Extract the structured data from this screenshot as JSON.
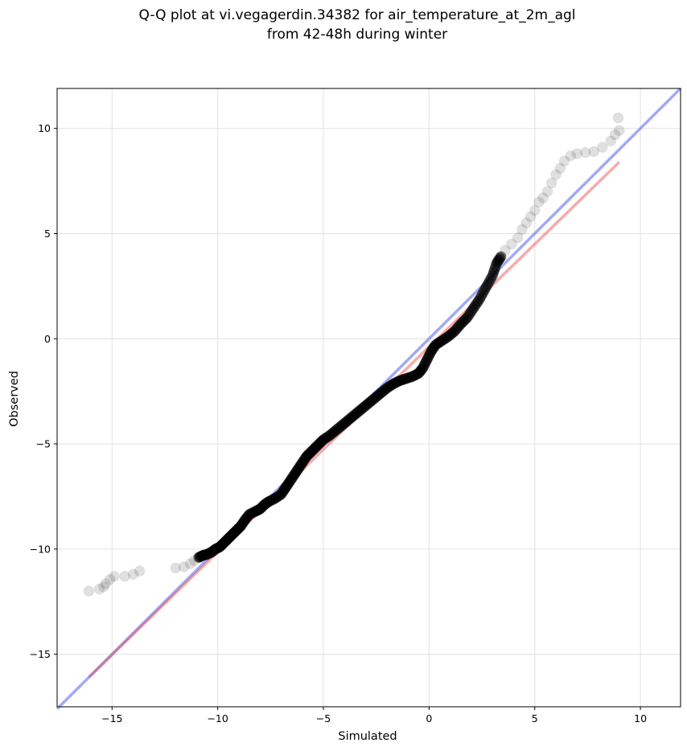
{
  "chart_data": {
    "type": "scatter",
    "title": [
      "Q-Q plot at vi.vegagerdin.34382 for air_temperature_at_2m_agl",
      "from 42-48h during winter"
    ],
    "xlabel": "Simulated",
    "ylabel": "Observed",
    "xlim": [
      -17.6,
      11.9
    ],
    "ylim": [
      -17.5,
      11.9
    ],
    "xticks": [
      -15,
      -10,
      -5,
      0,
      5,
      10
    ],
    "yticks": [
      -15,
      -10,
      -5,
      0,
      5,
      10
    ],
    "grid": true,
    "colors": {
      "points": "#000000",
      "identity_line": "#4455ee",
      "fit_line": "#ee4444"
    },
    "series": [
      {
        "type": "line",
        "points": [
          [
            -17.6,
            -17.6
          ],
          [
            11.9,
            11.9
          ]
        ]
      },
      {
        "type": "line",
        "points": [
          [
            -16.1,
            -16.1
          ],
          [
            9.0,
            8.4
          ]
        ]
      },
      {
        "type": "scatter",
        "points": [
          [
            -16.1,
            -12.0
          ],
          [
            -15.6,
            -11.9
          ],
          [
            -15.4,
            -11.8
          ],
          [
            -15.3,
            -11.65
          ],
          [
            -15.1,
            -11.45
          ],
          [
            -14.9,
            -11.3
          ],
          [
            -14.4,
            -11.3
          ],
          [
            -14.0,
            -11.2
          ],
          [
            -13.7,
            -11.05
          ],
          [
            -12.0,
            -10.9
          ],
          [
            -11.6,
            -10.85
          ],
          [
            -11.3,
            -10.7
          ],
          [
            -11.1,
            -10.55
          ],
          [
            -10.9,
            -10.4
          ],
          [
            -10.7,
            -10.3
          ],
          [
            -10.5,
            -10.25
          ],
          [
            -10.3,
            -10.15
          ],
          [
            -10.1,
            -10.0
          ],
          [
            -9.9,
            -9.9
          ],
          [
            -9.7,
            -9.7
          ],
          [
            -9.5,
            -9.5
          ],
          [
            -9.3,
            -9.3
          ],
          [
            -9.1,
            -9.1
          ],
          [
            -8.9,
            -8.9
          ],
          [
            -8.7,
            -8.6
          ],
          [
            -8.5,
            -8.35
          ],
          [
            -8.2,
            -8.2
          ],
          [
            -8.0,
            -8.1
          ],
          [
            -7.8,
            -7.9
          ],
          [
            -7.6,
            -7.75
          ],
          [
            -7.3,
            -7.6
          ],
          [
            -7.0,
            -7.4
          ],
          [
            -6.8,
            -7.1
          ],
          [
            -6.6,
            -6.8
          ],
          [
            -6.4,
            -6.5
          ],
          [
            -6.2,
            -6.2
          ],
          [
            -6.0,
            -5.9
          ],
          [
            -5.8,
            -5.6
          ],
          [
            -5.6,
            -5.4
          ],
          [
            -5.4,
            -5.2
          ],
          [
            -5.2,
            -5.0
          ],
          [
            -5.0,
            -4.8
          ],
          [
            -4.7,
            -4.6
          ],
          [
            -4.4,
            -4.35
          ],
          [
            -4.1,
            -4.1
          ],
          [
            -3.8,
            -3.85
          ],
          [
            -3.5,
            -3.6
          ],
          [
            -3.2,
            -3.35
          ],
          [
            -2.9,
            -3.1
          ],
          [
            -2.6,
            -2.85
          ],
          [
            -2.3,
            -2.6
          ],
          [
            -2.0,
            -2.35
          ],
          [
            -1.7,
            -2.15
          ],
          [
            -1.4,
            -2.0
          ],
          [
            -1.1,
            -1.9
          ],
          [
            -0.8,
            -1.8
          ],
          [
            -0.5,
            -1.65
          ],
          [
            -0.3,
            -1.4
          ],
          [
            -0.1,
            -1.0
          ],
          [
            0.1,
            -0.6
          ],
          [
            0.3,
            -0.3
          ],
          [
            0.6,
            -0.1
          ],
          [
            0.9,
            0.1
          ],
          [
            1.2,
            0.35
          ],
          [
            1.5,
            0.7
          ],
          [
            1.8,
            1.0
          ],
          [
            2.1,
            1.45
          ],
          [
            2.4,
            1.9
          ],
          [
            2.7,
            2.45
          ],
          [
            3.0,
            3.0
          ],
          [
            3.2,
            3.6
          ],
          [
            3.4,
            3.9
          ],
          [
            3.6,
            4.2
          ],
          [
            3.9,
            4.5
          ],
          [
            4.2,
            4.8
          ],
          [
            4.4,
            5.2
          ],
          [
            4.6,
            5.5
          ],
          [
            4.8,
            5.8
          ],
          [
            5.0,
            6.1
          ],
          [
            5.2,
            6.5
          ],
          [
            5.4,
            6.7
          ],
          [
            5.6,
            7.0
          ],
          [
            5.8,
            7.4
          ],
          [
            6.0,
            7.8
          ],
          [
            6.2,
            8.1
          ],
          [
            6.4,
            8.45
          ],
          [
            6.7,
            8.7
          ],
          [
            7.0,
            8.8
          ],
          [
            7.4,
            8.85
          ],
          [
            7.8,
            8.9
          ],
          [
            8.2,
            9.1
          ],
          [
            8.6,
            9.4
          ],
          [
            8.8,
            9.7
          ],
          [
            9.0,
            9.9
          ],
          [
            8.95,
            10.5
          ]
        ]
      }
    ]
  }
}
